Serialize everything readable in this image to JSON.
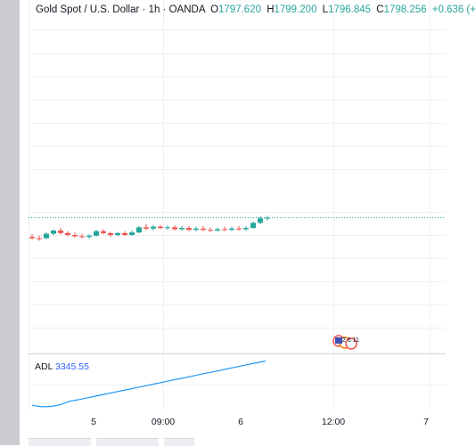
{
  "legend": {
    "symbol": "Gold Spot / U.S. Dollar",
    "interval": "1h",
    "source": "OANDA",
    "open_label": "O",
    "open": "1797.620",
    "high_label": "H",
    "high": "1799.200",
    "low_label": "L",
    "low": "1796.845",
    "close_label": "C",
    "close": "1798.256",
    "change": "+0.636 (+"
  },
  "indicator": {
    "name": "ADL",
    "value": "3345.55"
  },
  "time_axis": {
    "ticks": [
      "5",
      "09:00",
      "6",
      "12:00",
      "7"
    ]
  },
  "event_marker": {
    "text": "2 6 11"
  },
  "colors": {
    "up": "#26a69a",
    "down": "#ef5350",
    "adl_line": "#2196f3",
    "price_line": "#26a69a"
  },
  "chart_data": {
    "type": "candlestick",
    "title": "",
    "series": [
      {
        "o": 1797.2,
        "h": 1797.6,
        "l": 1796.8,
        "c": 1797.0
      },
      {
        "o": 1797.0,
        "h": 1797.4,
        "l": 1796.6,
        "c": 1796.9
      },
      {
        "o": 1797.0,
        "h": 1797.9,
        "l": 1796.9,
        "c": 1797.7
      },
      {
        "o": 1797.7,
        "h": 1798.4,
        "l": 1797.5,
        "c": 1798.2
      },
      {
        "o": 1798.2,
        "h": 1798.6,
        "l": 1797.6,
        "c": 1797.8
      },
      {
        "o": 1797.8,
        "h": 1798.1,
        "l": 1797.3,
        "c": 1797.5
      },
      {
        "o": 1797.5,
        "h": 1797.9,
        "l": 1797.1,
        "c": 1797.3
      },
      {
        "o": 1797.3,
        "h": 1797.7,
        "l": 1797.0,
        "c": 1797.2
      },
      {
        "o": 1797.2,
        "h": 1797.6,
        "l": 1796.9,
        "c": 1797.4
      },
      {
        "o": 1797.4,
        "h": 1798.3,
        "l": 1797.3,
        "c": 1798.1
      },
      {
        "o": 1798.1,
        "h": 1798.4,
        "l": 1797.6,
        "c": 1797.8
      },
      {
        "o": 1797.8,
        "h": 1798.0,
        "l": 1797.2,
        "c": 1797.5
      },
      {
        "o": 1797.5,
        "h": 1798.0,
        "l": 1797.3,
        "c": 1797.8
      },
      {
        "o": 1797.8,
        "h": 1798.1,
        "l": 1797.3,
        "c": 1797.5
      },
      {
        "o": 1797.5,
        "h": 1798.2,
        "l": 1797.4,
        "c": 1797.9
      },
      {
        "o": 1797.9,
        "h": 1798.9,
        "l": 1797.8,
        "c": 1798.7
      },
      {
        "o": 1798.7,
        "h": 1799.2,
        "l": 1798.3,
        "c": 1798.5
      },
      {
        "o": 1798.5,
        "h": 1799.0,
        "l": 1798.2,
        "c": 1798.8
      },
      {
        "o": 1798.8,
        "h": 1799.1,
        "l": 1798.4,
        "c": 1798.6
      },
      {
        "o": 1798.6,
        "h": 1799.0,
        "l": 1798.3,
        "c": 1798.7
      },
      {
        "o": 1798.7,
        "h": 1799.0,
        "l": 1798.2,
        "c": 1798.4
      },
      {
        "o": 1798.4,
        "h": 1798.9,
        "l": 1798.2,
        "c": 1798.6
      },
      {
        "o": 1798.6,
        "h": 1798.9,
        "l": 1798.1,
        "c": 1798.3
      },
      {
        "o": 1798.3,
        "h": 1798.8,
        "l": 1798.1,
        "c": 1798.5
      },
      {
        "o": 1798.5,
        "h": 1798.9,
        "l": 1798.1,
        "c": 1798.3
      },
      {
        "o": 1798.3,
        "h": 1798.7,
        "l": 1798.0,
        "c": 1798.2
      },
      {
        "o": 1798.2,
        "h": 1798.7,
        "l": 1798.0,
        "c": 1798.4
      },
      {
        "o": 1798.4,
        "h": 1798.8,
        "l": 1798.1,
        "c": 1798.3
      },
      {
        "o": 1798.3,
        "h": 1798.8,
        "l": 1798.1,
        "c": 1798.5
      },
      {
        "o": 1798.5,
        "h": 1798.9,
        "l": 1798.2,
        "c": 1798.4
      },
      {
        "o": 1798.4,
        "h": 1798.9,
        "l": 1798.2,
        "c": 1798.6
      },
      {
        "o": 1798.6,
        "h": 1799.6,
        "l": 1798.5,
        "c": 1799.4
      },
      {
        "o": 1799.4,
        "h": 1800.4,
        "l": 1799.2,
        "c": 1800.1
      },
      {
        "o": 1800.1,
        "h": 1800.5,
        "l": 1799.8,
        "c": 1800.2
      }
    ],
    "adl": [
      3140,
      3133,
      3134,
      3142,
      3158,
      3166,
      3175,
      3184,
      3193,
      3202,
      3211,
      3220,
      3229,
      3238,
      3247,
      3256,
      3265,
      3274,
      3283,
      3292,
      3301,
      3310,
      3319,
      3328,
      3337,
      3345.55
    ]
  }
}
